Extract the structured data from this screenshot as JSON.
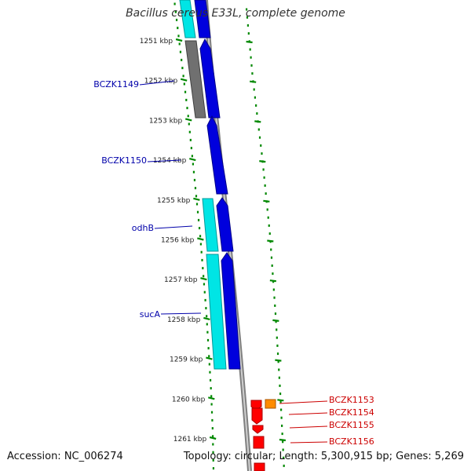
{
  "title": "Bacillus cereus E33L, complete genome",
  "footer": {
    "accession": "Accession: NC_006274",
    "summary": "Topology: circular; Length: 5,300,915 bp; Genes: 5,269"
  },
  "ticks": [
    {
      "label": "1251 kbp"
    },
    {
      "label": "1252 kbp"
    },
    {
      "label": "1253 kbp"
    },
    {
      "label": "1254 kbp"
    },
    {
      "label": "1255 kbp"
    },
    {
      "label": "1256 kbp"
    },
    {
      "label": "1257 kbp"
    },
    {
      "label": "1258 kbp"
    },
    {
      "label": "1259 kbp"
    },
    {
      "label": "1260 kbp"
    },
    {
      "label": "1261 kbp"
    }
  ],
  "genes_left": [
    {
      "label": "BCZK1149"
    },
    {
      "label": "BCZK1150"
    },
    {
      "label": "odhB"
    },
    {
      "label": "sucA"
    }
  ],
  "genes_right": [
    {
      "label": "BCZK1153"
    },
    {
      "label": "BCZK1154"
    },
    {
      "label": "BCZK1155"
    },
    {
      "label": "BCZK1156"
    }
  ],
  "colors": {
    "backbone": "#808080",
    "cds_blue": "#0000dd",
    "cds_cyan": "#00e5e5",
    "cds_gray": "#707070",
    "cds_red": "#ff0000",
    "cds_orange": "#ff8c00",
    "tick_green": "#008800",
    "left_label": "#0000aa",
    "right_label": "#cc0000"
  }
}
